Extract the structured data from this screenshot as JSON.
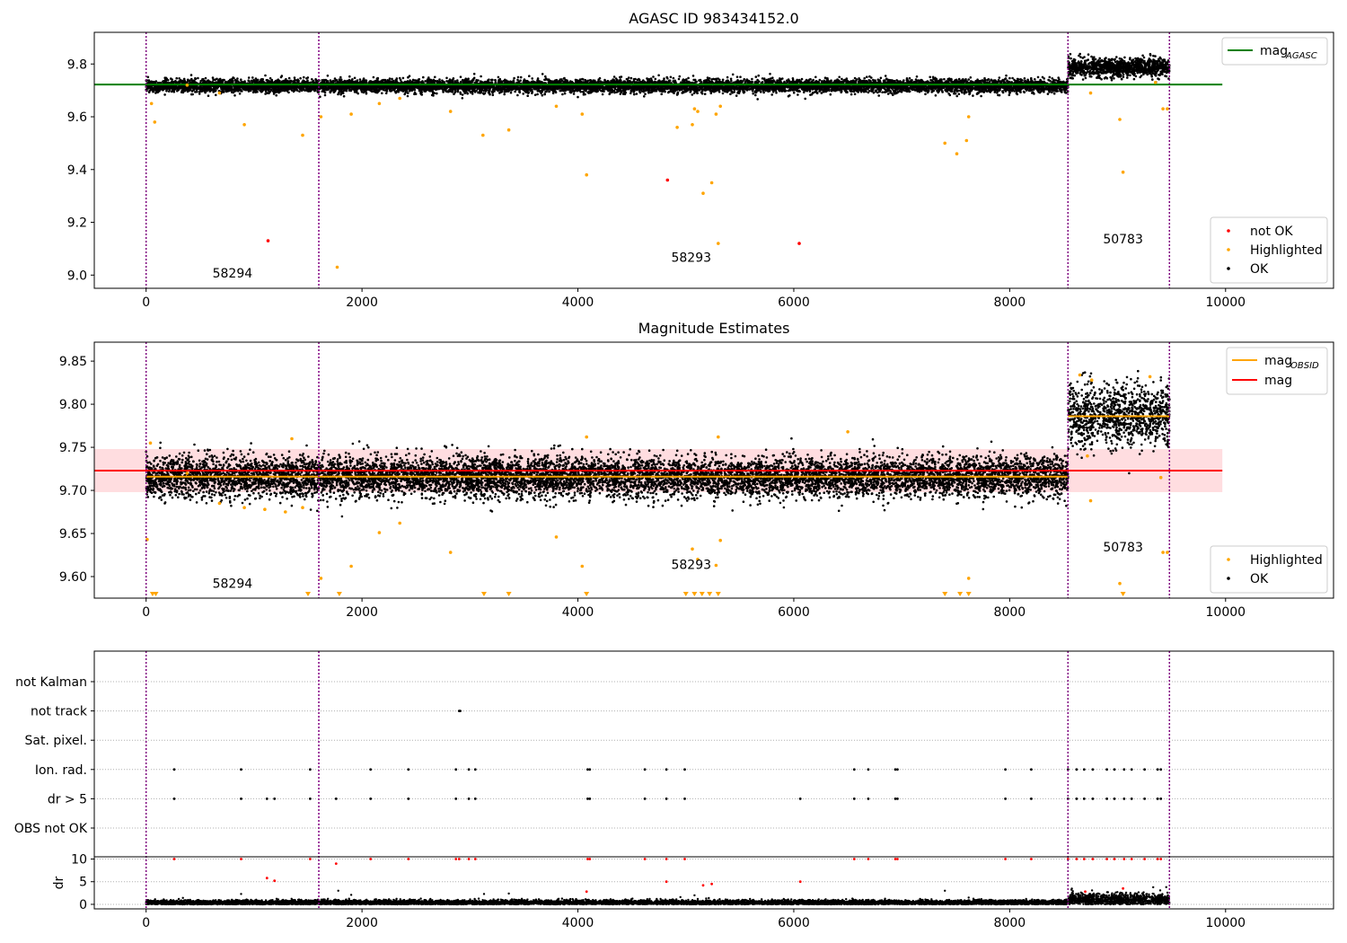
{
  "chart_data": [
    {
      "type": "scatter",
      "title": "AGASC ID 983434152.0",
      "xlim": [
        -480,
        11000
      ],
      "ylim": [
        8.95,
        9.92
      ],
      "xticks": [
        "0",
        "2000",
        "4000",
        "6000",
        "8000",
        "10000"
      ],
      "yticks": [
        "9.0",
        "9.2",
        "9.4",
        "9.6",
        "9.8"
      ],
      "obs_boundaries": [
        0,
        1600,
        8540,
        9480
      ],
      "obs_labels": [
        {
          "text": "58294",
          "x": 800,
          "y": 8.99
        },
        {
          "text": "58293",
          "x": 5050,
          "y": 9.05
        },
        {
          "text": "50783",
          "x": 9050,
          "y": 9.12
        }
      ],
      "hlines": [
        {
          "name": "mag_AGASC",
          "color": "#008000",
          "y": 9.722,
          "x": [
            -480,
            9970
          ]
        }
      ],
      "series": [
        {
          "name": "not OK",
          "color": "#ff0000",
          "points": [
            [
              1130,
              9.13
            ],
            [
              4830,
              9.36
            ],
            [
              6050,
              9.12
            ]
          ]
        },
        {
          "name": "Highlighted",
          "color": "#ffa500",
          "points": [
            [
              50,
              9.65
            ],
            [
              80,
              9.58
            ],
            [
              380,
              9.72
            ],
            [
              680,
              9.69
            ],
            [
              910,
              9.57
            ],
            [
              1450,
              9.53
            ],
            [
              1620,
              9.6
            ],
            [
              1770,
              9.03
            ],
            [
              1900,
              9.61
            ],
            [
              2160,
              9.65
            ],
            [
              2350,
              9.67
            ],
            [
              2820,
              9.62
            ],
            [
              3120,
              9.53
            ],
            [
              3360,
              9.55
            ],
            [
              3800,
              9.64
            ],
            [
              4040,
              9.61
            ],
            [
              4080,
              9.38
            ],
            [
              4920,
              9.56
            ],
            [
              5060,
              9.57
            ],
            [
              5080,
              9.63
            ],
            [
              5110,
              9.62
            ],
            [
              5160,
              9.31
            ],
            [
              5240,
              9.35
            ],
            [
              5300,
              9.12
            ],
            [
              5280,
              9.61
            ],
            [
              5320,
              9.64
            ],
            [
              7400,
              9.5
            ],
            [
              7510,
              9.46
            ],
            [
              7600,
              9.51
            ],
            [
              7620,
              9.6
            ],
            [
              8750,
              9.69
            ],
            [
              9020,
              9.59
            ],
            [
              9050,
              9.39
            ],
            [
              9420,
              9.63
            ],
            [
              9460,
              9.63
            ],
            [
              9350,
              9.73
            ]
          ]
        },
        {
          "name": "OK",
          "color": "#000000",
          "segments": [
            {
              "x": [
                0,
                8540
              ],
              "mean": 9.717,
              "spread": 0.012
            },
            {
              "x": [
                8540,
                9480
              ],
              "mean": 9.787,
              "spread": 0.018
            }
          ]
        }
      ],
      "legend_top": [
        {
          "label": "mag",
          "sub": "AGASC",
          "color": "#008000"
        }
      ],
      "legend_bottom": [
        {
          "label": "not OK",
          "color": "#ff0000"
        },
        {
          "label": "Highlighted",
          "color": "#ffa500"
        },
        {
          "label": "OK",
          "color": "#000000"
        }
      ]
    },
    {
      "type": "scatter",
      "title": "Magnitude Estimates",
      "xlim": [
        -480,
        11000
      ],
      "ylim": [
        9.575,
        9.872
      ],
      "xticks": [
        "0",
        "2000",
        "4000",
        "6000",
        "8000",
        "10000"
      ],
      "yticks": [
        "9.60",
        "9.65",
        "9.70",
        "9.75",
        "9.80",
        "9.85"
      ],
      "obs_boundaries": [
        0,
        1600,
        8540,
        9480
      ],
      "obs_labels": [
        {
          "text": "58294",
          "x": 800,
          "y": 9.587
        },
        {
          "text": "58293",
          "x": 5050,
          "y": 9.609
        },
        {
          "text": "50783",
          "x": 9050,
          "y": 9.629
        }
      ],
      "band": {
        "color": "#ff000022",
        "y": [
          9.698,
          9.748
        ],
        "x": [
          -480,
          9970
        ]
      },
      "hlines": [
        {
          "name": "mag",
          "color": "#ff0000",
          "y": 9.723,
          "x": [
            -480,
            9970
          ]
        },
        {
          "name": "mag_OBSID",
          "color": "#ffa500",
          "y": 9.716,
          "x": [
            0,
            1600
          ]
        },
        {
          "name": "mag_OBSID",
          "color": "#ffa500",
          "y": 9.716,
          "x": [
            1600,
            8540
          ]
        },
        {
          "name": "mag_OBSID",
          "color": "#ffa500",
          "y": 9.786,
          "x": [
            8540,
            9480
          ]
        }
      ],
      "lower_markers_x": [
        60,
        90,
        1500,
        1790,
        3130,
        3360,
        4080,
        5000,
        5080,
        5150,
        5220,
        5300,
        7400,
        7540,
        7620,
        9050
      ],
      "series": [
        {
          "name": "Highlighted",
          "color": "#ffa500",
          "points": [
            [
              10,
              9.643
            ],
            [
              40,
              9.755
            ],
            [
              380,
              9.72
            ],
            [
              680,
              9.685
            ],
            [
              910,
              9.68
            ],
            [
              1100,
              9.678
            ],
            [
              1290,
              9.675
            ],
            [
              1350,
              9.76
            ],
            [
              1450,
              9.68
            ],
            [
              1620,
              9.598
            ],
            [
              1900,
              9.612
            ],
            [
              2160,
              9.651
            ],
            [
              2350,
              9.662
            ],
            [
              2820,
              9.628
            ],
            [
              3800,
              9.646
            ],
            [
              4040,
              9.612
            ],
            [
              4080,
              9.762
            ],
            [
              5060,
              9.632
            ],
            [
              5110,
              9.62
            ],
            [
              5280,
              9.613
            ],
            [
              5320,
              9.642
            ],
            [
              5300,
              9.762
            ],
            [
              6500,
              9.768
            ],
            [
              7620,
              9.598
            ],
            [
              8720,
              9.74
            ],
            [
              8750,
              9.688
            ],
            [
              8760,
              9.828
            ],
            [
              8650,
              9.834
            ],
            [
              9020,
              9.592
            ],
            [
              9300,
              9.832
            ],
            [
              9420,
              9.628
            ],
            [
              9460,
              9.628
            ],
            [
              9400,
              9.715
            ]
          ]
        },
        {
          "name": "OK",
          "color": "#000000",
          "segments": [
            {
              "x": [
                0,
                8540
              ],
              "mean": 9.716,
              "spread": 0.012
            },
            {
              "x": [
                8540,
                9480
              ],
              "mean": 9.787,
              "spread": 0.018
            }
          ]
        }
      ],
      "legend_top": [
        {
          "label": "mag",
          "sub": "OBSID",
          "color": "#ffa500"
        },
        {
          "label": "mag",
          "sub": "",
          "color": "#ff0000"
        }
      ],
      "legend_bottom": [
        {
          "label": "Highlighted",
          "color": "#ffa500"
        },
        {
          "label": "OK",
          "color": "#000000"
        }
      ]
    },
    {
      "type": "scatter",
      "title": "",
      "xlim": [
        -480,
        11000
      ],
      "xticks": [
        "0",
        "2000",
        "4000",
        "6000",
        "8000",
        "10000"
      ],
      "obs_boundaries": [
        0,
        1600,
        8540,
        9480
      ],
      "flag_categories": [
        "not Kalman",
        "not track",
        "Sat. pixel.",
        "Ion. rad.",
        "dr > 5",
        "OBS not OK"
      ],
      "flags": {
        "not Kalman": [],
        "not track": [
          2900,
          2910
        ],
        "Sat. pixel.": [],
        "Ion. rad.": [
          260,
          880,
          1520,
          2080,
          2430,
          2870,
          2990,
          3050,
          4090,
          4110,
          4620,
          4820,
          4990,
          6560,
          6690,
          6940,
          6960,
          7960,
          8200,
          8540,
          8620,
          8690,
          8770,
          8900,
          8970,
          9060,
          9130,
          9250,
          9370,
          9400
        ],
        "dr > 5": [
          260,
          880,
          1120,
          1190,
          1520,
          1760,
          2080,
          2430,
          2870,
          2990,
          3050,
          4090,
          4110,
          4620,
          4820,
          4990,
          6060,
          6560,
          6690,
          6940,
          6960,
          7960,
          8200,
          8540,
          8620,
          8690,
          8770,
          8900,
          8970,
          9060,
          9130,
          9250,
          9370,
          9400
        ],
        "OBS not OK": []
      },
      "dr": {
        "ylabel": "dr",
        "yticks": [
          "0",
          "5",
          "10"
        ],
        "ylim": [
          -1,
          10.5
        ],
        "clip_value": 10,
        "flagged_points": [
          [
            260,
            10
          ],
          [
            880,
            10
          ],
          [
            1120,
            5.8
          ],
          [
            1190,
            5.2
          ],
          [
            1520,
            10
          ],
          [
            1760,
            9
          ],
          [
            2080,
            10
          ],
          [
            2430,
            10
          ],
          [
            2870,
            10
          ],
          [
            2900,
            10
          ],
          [
            2990,
            10
          ],
          [
            3050,
            10
          ],
          [
            4090,
            10
          ],
          [
            4110,
            10
          ],
          [
            4620,
            10
          ],
          [
            4820,
            10
          ],
          [
            4990,
            10
          ],
          [
            6060,
            5
          ],
          [
            6560,
            10
          ],
          [
            6690,
            10
          ],
          [
            6940,
            10
          ],
          [
            6960,
            10
          ],
          [
            7960,
            10
          ],
          [
            8200,
            10
          ],
          [
            8540,
            10
          ],
          [
            8620,
            10
          ],
          [
            8690,
            10
          ],
          [
            8770,
            10
          ],
          [
            8900,
            10
          ],
          [
            8970,
            10
          ],
          [
            9060,
            10
          ],
          [
            9130,
            10
          ],
          [
            9250,
            10
          ],
          [
            9370,
            10
          ],
          [
            9400,
            10
          ],
          [
            4080,
            2.8
          ],
          [
            4820,
            5
          ],
          [
            5160,
            4.2
          ],
          [
            5240,
            4.5
          ],
          [
            9050,
            3.5
          ],
          [
            8700,
            2.8
          ]
        ],
        "normal_points": [
          [
            880,
            2.3
          ],
          [
            1780,
            3
          ],
          [
            1900,
            2.1
          ],
          [
            3130,
            2.3
          ],
          [
            3360,
            2.4
          ],
          [
            4950,
            1.6
          ],
          [
            5080,
            2
          ],
          [
            5110,
            1.2
          ],
          [
            7400,
            3
          ],
          [
            7620,
            1.5
          ],
          [
            9450,
            3.8
          ]
        ],
        "segments": [
          {
            "x": [
              0,
              8540
            ],
            "mean": 0.35,
            "spread": 0.3
          },
          {
            "x": [
              8540,
              9480
            ],
            "mean": 1.0,
            "spread": 0.7
          }
        ]
      }
    }
  ]
}
